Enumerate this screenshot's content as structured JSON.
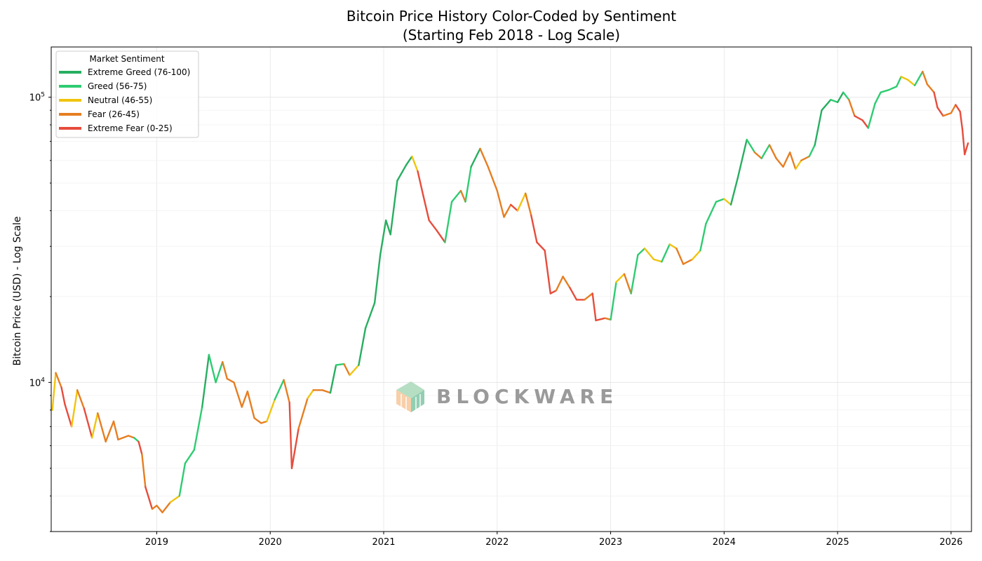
{
  "chart_data": {
    "type": "line",
    "title": "Bitcoin Price History Color-Coded by Sentiment",
    "subtitle": "(Starting Feb 2018 - Log Scale)",
    "xlabel": "",
    "ylabel": "Bitcoin Price (USD) - Log Scale",
    "yscale": "log",
    "xlim": [
      2018.07,
      2026.18
    ],
    "ylim": [
      3000,
      150000
    ],
    "x_ticks": [
      {
        "label": "2019",
        "value": 2019
      },
      {
        "label": "2020",
        "value": 2020
      },
      {
        "label": "2021",
        "value": 2021
      },
      {
        "label": "2022",
        "value": 2022
      },
      {
        "label": "2023",
        "value": 2023
      },
      {
        "label": "2024",
        "value": 2024
      },
      {
        "label": "2025",
        "value": 2025
      },
      {
        "label": "2026",
        "value": 2026
      }
    ],
    "y_ticks": [
      {
        "base": "10",
        "exp": "4",
        "value": 10000
      },
      {
        "base": "10",
        "exp": "5",
        "value": 100000
      }
    ],
    "grid": true,
    "legend": {
      "title": "Market Sentiment",
      "position": "top-left",
      "entries": [
        {
          "key": "extreme_greed",
          "label": "Extreme Greed (76-100)",
          "color": "#27ae60"
        },
        {
          "key": "greed",
          "label": "Greed (56-75)",
          "color": "#2ecc71"
        },
        {
          "key": "neutral",
          "label": "Neutral (46-55)",
          "color": "#f1c40f"
        },
        {
          "key": "fear",
          "label": "Fear (26-45)",
          "color": "#e67e22"
        },
        {
          "key": "extreme_fear",
          "label": "Extreme Fear (0-25)",
          "color": "#e74c3c"
        }
      ]
    },
    "series": [
      {
        "name": "Bitcoin Price",
        "points": [
          [
            2018.08,
            8000,
            "fear"
          ],
          [
            2018.11,
            10800,
            "neutral"
          ],
          [
            2018.16,
            9600,
            "fear"
          ],
          [
            2018.19,
            8400,
            "extreme_fear"
          ],
          [
            2018.25,
            7000,
            "extreme_fear"
          ],
          [
            2018.3,
            9400,
            "neutral"
          ],
          [
            2018.36,
            8100,
            "fear"
          ],
          [
            2018.43,
            6400,
            "extreme_fear"
          ],
          [
            2018.48,
            7800,
            "neutral"
          ],
          [
            2018.55,
            6200,
            "fear"
          ],
          [
            2018.62,
            7300,
            "fear"
          ],
          [
            2018.66,
            6300,
            "fear"
          ],
          [
            2018.75,
            6500,
            "fear"
          ],
          [
            2018.8,
            6400,
            "fear"
          ],
          [
            2018.84,
            6200,
            "greed"
          ],
          [
            2018.87,
            5600,
            "extreme_fear"
          ],
          [
            2018.9,
            4300,
            "fear"
          ],
          [
            2018.96,
            3600,
            "extreme_fear"
          ],
          [
            2019.0,
            3700,
            "fear"
          ],
          [
            2019.05,
            3500,
            "fear"
          ],
          [
            2019.12,
            3800,
            "fear"
          ],
          [
            2019.2,
            4000,
            "neutral"
          ],
          [
            2019.25,
            5200,
            "greed"
          ],
          [
            2019.33,
            5800,
            "greed"
          ],
          [
            2019.4,
            8200,
            "greed"
          ],
          [
            2019.46,
            12500,
            "extreme_greed"
          ],
          [
            2019.52,
            10000,
            "greed"
          ],
          [
            2019.58,
            11800,
            "greed"
          ],
          [
            2019.62,
            10300,
            "fear"
          ],
          [
            2019.68,
            10000,
            "fear"
          ],
          [
            2019.75,
            8200,
            "fear"
          ],
          [
            2019.8,
            9300,
            "fear"
          ],
          [
            2019.86,
            7500,
            "fear"
          ],
          [
            2019.92,
            7200,
            "fear"
          ],
          [
            2019.97,
            7300,
            "fear"
          ],
          [
            2020.04,
            8700,
            "neutral"
          ],
          [
            2020.12,
            10200,
            "greed"
          ],
          [
            2020.17,
            8500,
            "fear"
          ],
          [
            2020.19,
            5000,
            "extreme_fear"
          ],
          [
            2020.25,
            6900,
            "extreme_fear"
          ],
          [
            2020.33,
            8800,
            "fear"
          ],
          [
            2020.38,
            9400,
            "neutral"
          ],
          [
            2020.46,
            9400,
            "fear"
          ],
          [
            2020.53,
            9200,
            "fear"
          ],
          [
            2020.58,
            11500,
            "extreme_greed"
          ],
          [
            2020.65,
            11600,
            "greed"
          ],
          [
            2020.7,
            10600,
            "fear"
          ],
          [
            2020.78,
            11500,
            "neutral"
          ],
          [
            2020.84,
            15500,
            "extreme_greed"
          ],
          [
            2020.92,
            19000,
            "extreme_greed"
          ],
          [
            2020.97,
            28000,
            "extreme_greed"
          ],
          [
            2021.02,
            37000,
            "extreme_greed"
          ],
          [
            2021.06,
            33000,
            "extreme_greed"
          ],
          [
            2021.12,
            51000,
            "extreme_greed"
          ],
          [
            2021.2,
            58000,
            "extreme_greed"
          ],
          [
            2021.25,
            62000,
            "extreme_greed"
          ],
          [
            2021.3,
            55000,
            "neutral"
          ],
          [
            2021.35,
            45000,
            "extreme_fear"
          ],
          [
            2021.4,
            37000,
            "extreme_fear"
          ],
          [
            2021.47,
            34000,
            "extreme_fear"
          ],
          [
            2021.54,
            31000,
            "extreme_fear"
          ],
          [
            2021.6,
            43000,
            "greed"
          ],
          [
            2021.68,
            47000,
            "greed"
          ],
          [
            2021.72,
            43000,
            "fear"
          ],
          [
            2021.77,
            57000,
            "greed"
          ],
          [
            2021.85,
            66000,
            "extreme_greed"
          ],
          [
            2021.92,
            57000,
            "fear"
          ],
          [
            2022.0,
            47000,
            "fear"
          ],
          [
            2022.06,
            38000,
            "fear"
          ],
          [
            2022.12,
            42000,
            "fear"
          ],
          [
            2022.18,
            40000,
            "extreme_fear"
          ],
          [
            2022.25,
            46000,
            "neutral"
          ],
          [
            2022.3,
            38500,
            "fear"
          ],
          [
            2022.35,
            31000,
            "extreme_fear"
          ],
          [
            2022.42,
            29000,
            "extreme_fear"
          ],
          [
            2022.47,
            20500,
            "extreme_fear"
          ],
          [
            2022.52,
            21000,
            "extreme_fear"
          ],
          [
            2022.58,
            23500,
            "fear"
          ],
          [
            2022.64,
            21500,
            "fear"
          ],
          [
            2022.7,
            19500,
            "extreme_fear"
          ],
          [
            2022.77,
            19500,
            "extreme_fear"
          ],
          [
            2022.84,
            20500,
            "fear"
          ],
          [
            2022.87,
            16500,
            "extreme_fear"
          ],
          [
            2022.95,
            16800,
            "extreme_fear"
          ],
          [
            2023.0,
            16600,
            "fear"
          ],
          [
            2023.05,
            22500,
            "greed"
          ],
          [
            2023.12,
            24000,
            "neutral"
          ],
          [
            2023.18,
            20500,
            "fear"
          ],
          [
            2023.24,
            28000,
            "greed"
          ],
          [
            2023.3,
            29500,
            "greed"
          ],
          [
            2023.38,
            27000,
            "neutral"
          ],
          [
            2023.45,
            26500,
            "neutral"
          ],
          [
            2023.52,
            30500,
            "greed"
          ],
          [
            2023.58,
            29500,
            "neutral"
          ],
          [
            2023.64,
            26000,
            "fear"
          ],
          [
            2023.72,
            27000,
            "fear"
          ],
          [
            2023.79,
            29000,
            "neutral"
          ],
          [
            2023.84,
            36000,
            "greed"
          ],
          [
            2023.93,
            43000,
            "greed"
          ],
          [
            2024.0,
            44000,
            "greed"
          ],
          [
            2024.06,
            42000,
            "neutral"
          ],
          [
            2024.12,
            52000,
            "extreme_greed"
          ],
          [
            2024.2,
            71000,
            "extreme_greed"
          ],
          [
            2024.27,
            64000,
            "greed"
          ],
          [
            2024.33,
            61000,
            "fear"
          ],
          [
            2024.4,
            68000,
            "greed"
          ],
          [
            2024.46,
            61000,
            "fear"
          ],
          [
            2024.52,
            57000,
            "fear"
          ],
          [
            2024.58,
            64000,
            "fear"
          ],
          [
            2024.63,
            56000,
            "fear"
          ],
          [
            2024.68,
            60000,
            "neutral"
          ],
          [
            2024.75,
            62000,
            "fear"
          ],
          [
            2024.8,
            68000,
            "greed"
          ],
          [
            2024.86,
            90000,
            "extreme_greed"
          ],
          [
            2024.94,
            98000,
            "extreme_greed"
          ],
          [
            2025.0,
            96000,
            "greed"
          ],
          [
            2025.05,
            104000,
            "extreme_greed"
          ],
          [
            2025.1,
            98000,
            "greed"
          ],
          [
            2025.15,
            86000,
            "fear"
          ],
          [
            2025.22,
            83000,
            "extreme_fear"
          ],
          [
            2025.27,
            78000,
            "extreme_fear"
          ],
          [
            2025.33,
            95000,
            "greed"
          ],
          [
            2025.38,
            104000,
            "greed"
          ],
          [
            2025.45,
            106000,
            "greed"
          ],
          [
            2025.52,
            109000,
            "greed"
          ],
          [
            2025.56,
            118000,
            "greed"
          ],
          [
            2025.62,
            115000,
            "neutral"
          ],
          [
            2025.68,
            110000,
            "neutral"
          ],
          [
            2025.75,
            123000,
            "greed"
          ],
          [
            2025.79,
            111000,
            "fear"
          ],
          [
            2025.85,
            104000,
            "fear"
          ],
          [
            2025.88,
            92000,
            "extreme_fear"
          ],
          [
            2025.93,
            86000,
            "extreme_fear"
          ],
          [
            2026.0,
            88000,
            "fear"
          ],
          [
            2026.04,
            94000,
            "fear"
          ],
          [
            2026.08,
            89000,
            "extreme_fear"
          ],
          [
            2026.1,
            77000,
            "extreme_fear"
          ],
          [
            2026.12,
            63000,
            "extreme_fear"
          ],
          [
            2026.15,
            69000,
            "extreme_fear"
          ]
        ]
      }
    ]
  },
  "watermark": {
    "text": "BLOCKWARE"
  }
}
